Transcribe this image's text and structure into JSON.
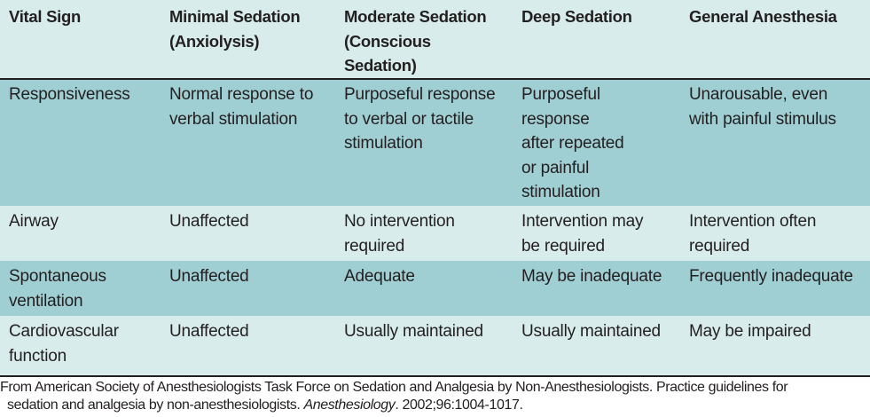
{
  "table": {
    "headers": [
      "Vital Sign",
      "Minimal Sedation\n (Anxiolysis)",
      "Moderate Sedation\n (Conscious\n Sedation)",
      "Deep Sedation",
      "General Anesthesia"
    ],
    "rows": [
      {
        "cells": [
          "Responsiveness",
          "Normal response to\n verbal stimulation",
          "Purposeful response\n to verbal or tactile\n stimulation",
          "Purposeful\n response\n after repeated\n or painful\n stimulation",
          "Unarousable, even\n with painful stimulus"
        ]
      },
      {
        "cells": [
          "Airway",
          "Unaffected",
          "No intervention\n required",
          "Intervention may\n be required",
          "Intervention often\n required"
        ]
      },
      {
        "cells": [
          "Spontaneous\n ventilation",
          "Unaffected",
          "Adequate",
          "May be inadequate",
          "Frequently inadequate"
        ]
      },
      {
        "cells": [
          "Cardiovascular\n function",
          "Unaffected",
          "Usually maintained",
          "Usually maintained",
          "May be impaired"
        ]
      }
    ]
  },
  "footnote": {
    "line1": "From American Society of Anesthesiologists Task Force on Sedation and Analgesia by Non-Anesthesiologists. Practice guidelines for",
    "line2_pre": "sedation and analgesia by non-anesthesiologists. ",
    "line2_journal": "Anesthesiology",
    "line2_post": ". 2002;96:1004-1017."
  }
}
